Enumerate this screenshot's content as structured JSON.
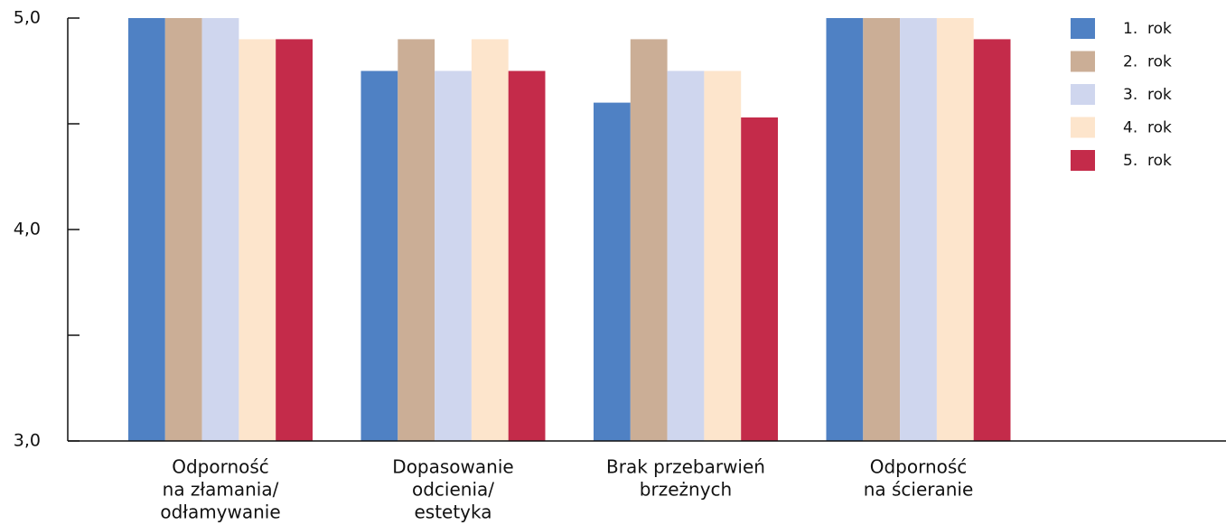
{
  "chart_data": {
    "type": "bar",
    "categories": [
      [
        "Odporność",
        "na złamania/",
        "odłamywanie"
      ],
      [
        "Dopasowanie",
        "odcienia/",
        "estetyka"
      ],
      [
        "Brak przebarwień",
        "brzeżnych"
      ],
      [
        "Odporność",
        "na ścieranie"
      ]
    ],
    "series": [
      {
        "name": "1.  rok",
        "color": "#4f81c4",
        "values": [
          5,
          4.75,
          4.6,
          5
        ]
      },
      {
        "name": "2.  rok",
        "color": "#cbae96",
        "values": [
          5,
          4.9,
          4.9,
          5
        ]
      },
      {
        "name": "3.  rok",
        "color": "#cfd6ee",
        "values": [
          5,
          4.75,
          4.75,
          5
        ]
      },
      {
        "name": "4.  rok",
        "color": "#fde5cc",
        "values": [
          4.9,
          4.9,
          4.75,
          5
        ]
      },
      {
        "name": "5.  rok",
        "color": "#c42b4a",
        "values": [
          4.9,
          4.75,
          4.53,
          4.9
        ]
      }
    ],
    "ylim": [
      3,
      5
    ],
    "yticks": [
      {
        "value": 3,
        "label": "3,0"
      },
      {
        "value": 4,
        "label": "4,0"
      },
      {
        "value": 5,
        "label": "5,0"
      }
    ],
    "minor_yticks": [
      3.5,
      4.5
    ],
    "legend": "top-right"
  }
}
